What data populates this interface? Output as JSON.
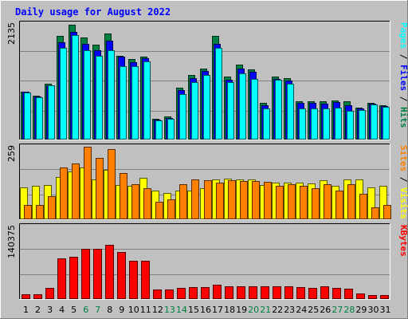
{
  "chart_data": {
    "type": "bar",
    "title": "Daily usage for August 2022",
    "categories": [
      "1",
      "2",
      "3",
      "4",
      "5",
      "6",
      "7",
      "8",
      "9",
      "10",
      "11",
      "12",
      "13",
      "14",
      "15",
      "16",
      "17",
      "18",
      "19",
      "20",
      "21",
      "22",
      "23",
      "24",
      "25",
      "26",
      "27",
      "28",
      "29",
      "30",
      "31"
    ],
    "weekend_days": [
      "6",
      "7",
      "13",
      "14",
      "20",
      "21",
      "27",
      "28"
    ],
    "panels": [
      {
        "name": "hits-files-pages",
        "ymax_label": "2135",
        "ymax": 2135,
        "legend": [
          {
            "text": "Pages",
            "color": "#00ffff"
          },
          {
            "text": " / ",
            "color": "#000000"
          },
          {
            "text": "Files",
            "color": "#0000ff"
          },
          {
            "text": " / ",
            "color": "#000000"
          },
          {
            "text": "Hits",
            "color": "#008040"
          }
        ],
        "series": [
          {
            "name": "Hits",
            "color": "#008040",
            "values": [
              880,
              800,
              1020,
              1910,
              2120,
              1880,
              1750,
              1950,
              1540,
              1480,
              1530,
              370,
              410,
              950,
              1180,
              1300,
              1910,
              1160,
              1380,
              1290,
              670,
              1160,
              1120,
              700,
              700,
              700,
              710,
              690,
              580,
              670,
              630
            ]
          },
          {
            "name": "Files",
            "color": "#0000ff",
            "values": [
              870,
              780,
              1000,
              1800,
              1990,
              1760,
              1650,
              1830,
              1520,
              1430,
              1500,
              360,
              390,
              900,
              1130,
              1260,
              1770,
              1090,
              1310,
              1240,
              620,
              1110,
              1080,
              660,
              660,
              650,
              680,
              630,
              560,
              650,
              610
            ]
          },
          {
            "name": "Pages",
            "color": "#00ffff",
            "values": [
              860,
              770,
              990,
              1690,
              1930,
              1640,
              1540,
              1640,
              1350,
              1350,
              1440,
              340,
              370,
              830,
              1060,
              1180,
              1690,
              1050,
              1220,
              1110,
              560,
              1100,
              1020,
              560,
              560,
              560,
              580,
              520,
              530,
              640,
              600
            ]
          }
        ]
      },
      {
        "name": "visits-sites",
        "ymax_label": "259",
        "ymax": 259,
        "legend": [
          {
            "text": "Sites",
            "color": "#ff8000"
          },
          {
            "text": " / ",
            "color": "#000000"
          },
          {
            "text": "Visits",
            "color": "#ffff00"
          }
        ],
        "series": [
          {
            "name": "Visits",
            "color": "#ffff00",
            "values": [
              112,
              118,
              120,
              150,
              171,
              185,
              142,
              175,
              120,
              118,
              147,
              100,
              92,
              100,
              100,
              110,
              140,
              143,
              140,
              140,
              120,
              130,
              130,
              130,
              128,
              138,
              118,
              140,
              140,
              112,
              118
            ]
          },
          {
            "name": "Sites",
            "color": "#ff8000",
            "values": [
              50,
              50,
              80,
              185,
              198,
              259,
              220,
              250,
              165,
              125,
              110,
              60,
              70,
              125,
              140,
              138,
              130,
              138,
              135,
              135,
              132,
              118,
              125,
              118,
              110,
              125,
              100,
              125,
              90,
              40,
              50
            ]
          }
        ]
      },
      {
        "name": "kbytes",
        "ymax_label": "140375",
        "ymax": 140375,
        "legend": [
          {
            "text": "KBytes",
            "color": "#ff0000"
          }
        ],
        "series": [
          {
            "name": "KBytes",
            "color": "#ff0000",
            "values": [
              8000,
              8000,
              21000,
              78000,
              81000,
              97000,
              96000,
              104000,
              90000,
              74000,
              74000,
              17000,
              17000,
              21000,
              22000,
              22000,
              26000,
              24000,
              24000,
              23000,
              23000,
              24000,
              23000,
              22000,
              21000,
              23000,
              21000,
              19000,
              9000,
              7000,
              7000
            ]
          }
        ]
      }
    ]
  }
}
